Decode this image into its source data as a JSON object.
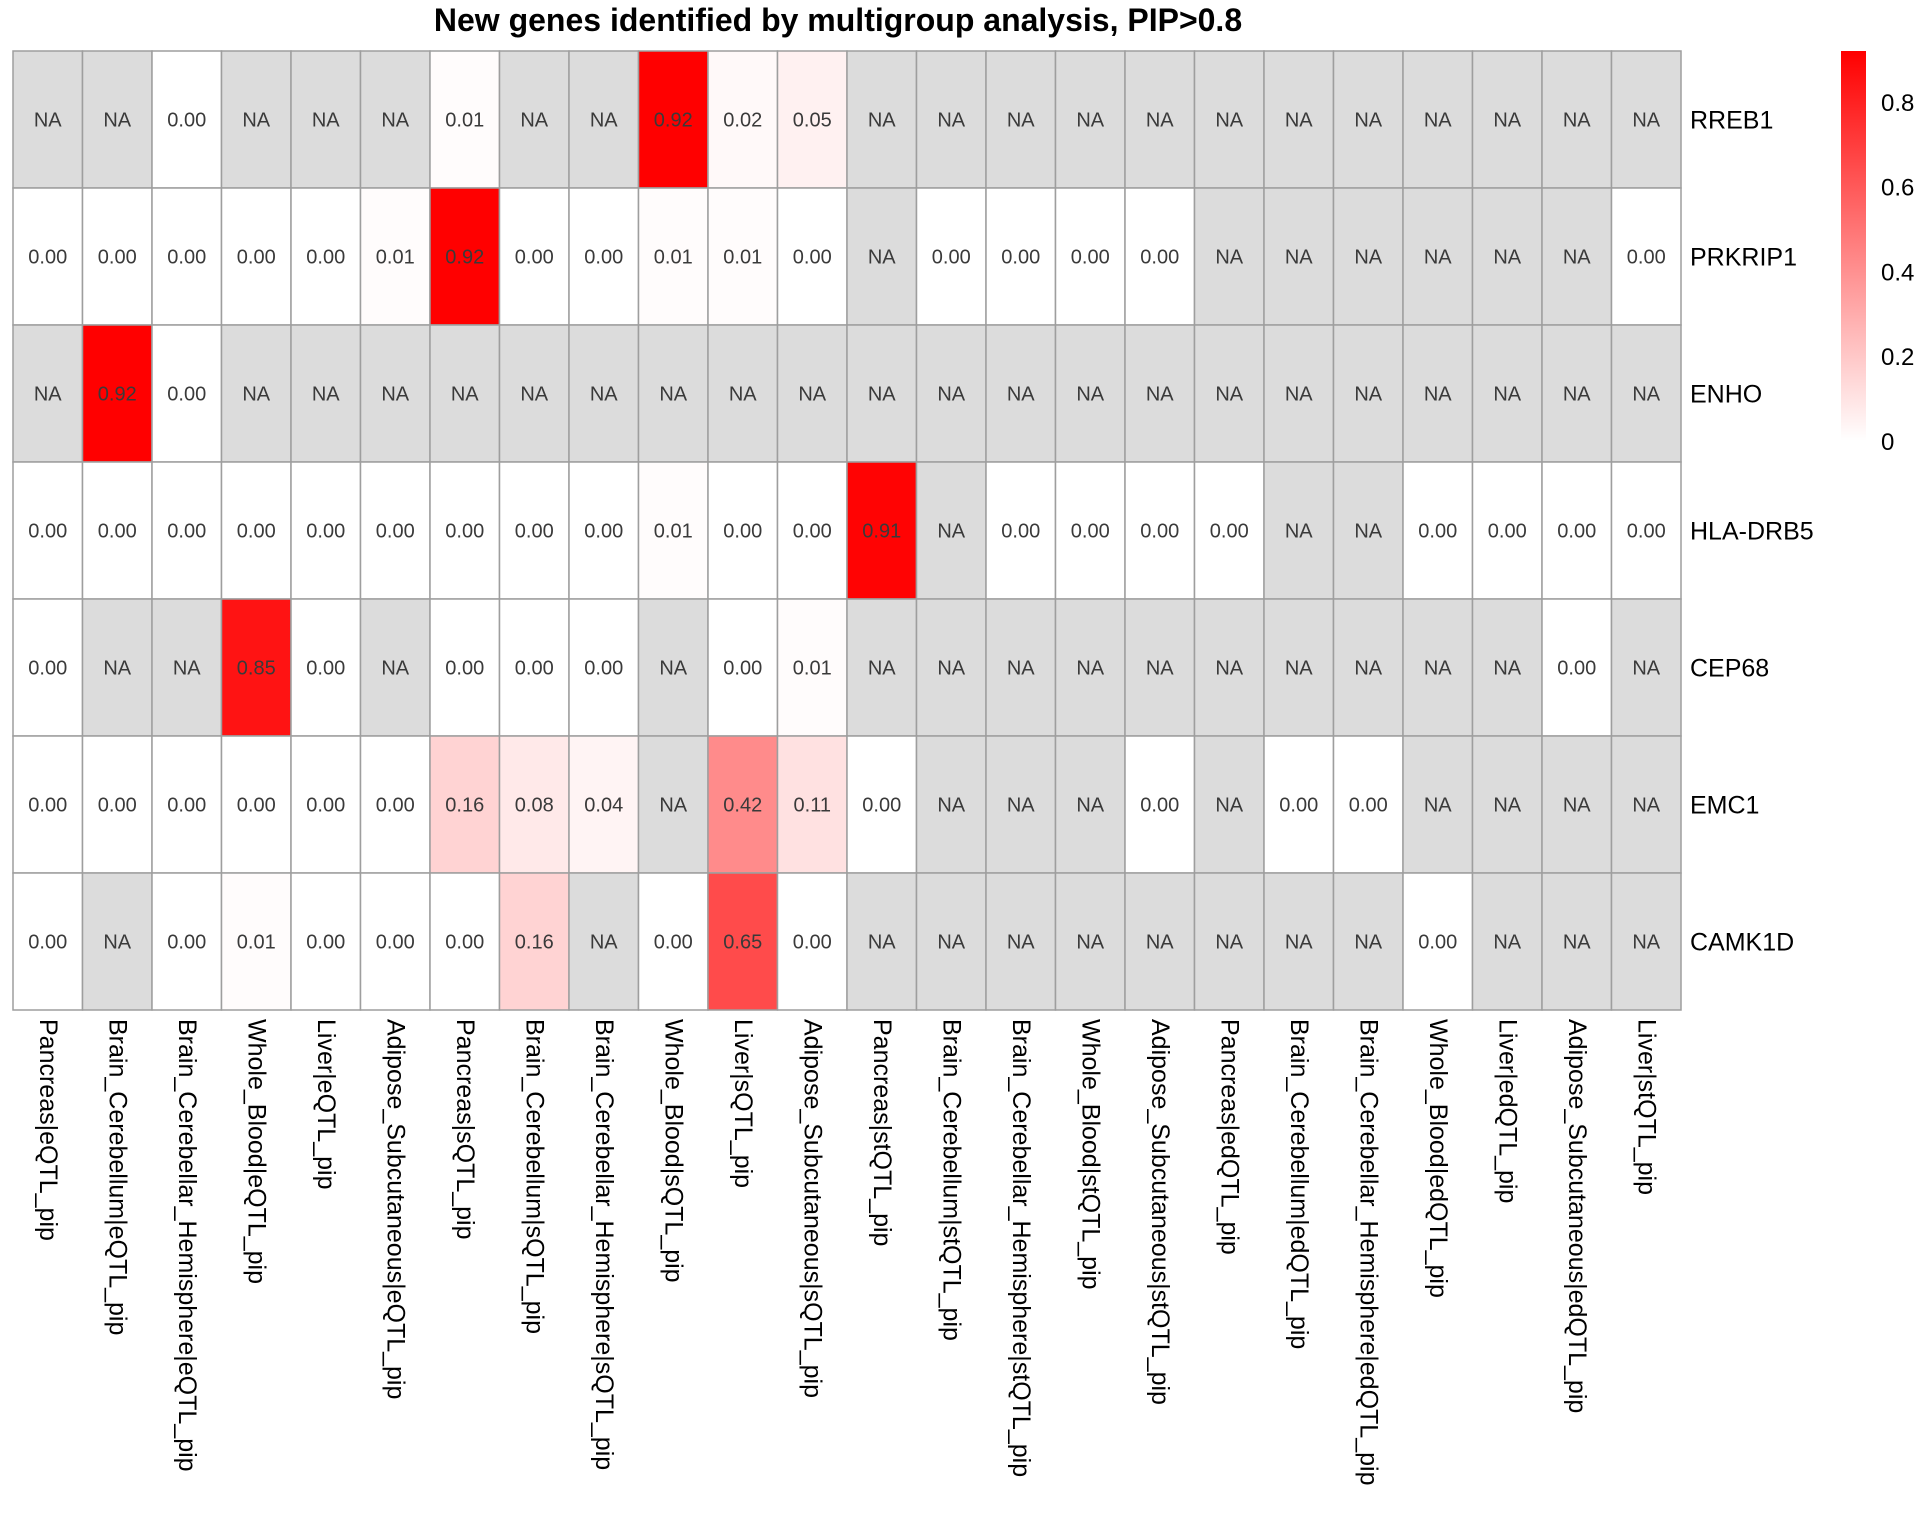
{
  "chart_data": {
    "type": "heatmap",
    "title": "New genes identified by multigroup analysis, PIP>0.8",
    "rows": [
      "RREB1",
      "PRKRIP1",
      "ENHO",
      "HLA-DRB5",
      "CEP68",
      "EMC1",
      "CAMK1D"
    ],
    "columns": [
      "Pancreas|eQTL_pip",
      "Brain_Cerebellum|eQTL_pip",
      "Brain_Cerebellar_Hemisphere|eQTL_pip",
      "Whole_Blood|eQTL_pip",
      "Liver|eQTL_pip",
      "Adipose_Subcutaneous|eQTL_pip",
      "Pancreas|sQTL_pip",
      "Brain_Cerebellum|sQTL_pip",
      "Brain_Cerebellar_Hemisphere|sQTL_pip",
      "Whole_Blood|sQTL_pip",
      "Liver|sQTL_pip",
      "Adipose_Subcutaneous|sQTL_pip",
      "Pancreas|stQTL_pip",
      "Brain_Cerebellum|stQTL_pip",
      "Brain_Cerebellar_Hemisphere|stQTL_pip",
      "Whole_Blood|stQTL_pip",
      "Adipose_Subcutaneous|stQTL_pip",
      "Pancreas|edQTL_pip",
      "Brain_Cerebellum|edQTL_pip",
      "Brain_Cerebellar_Hemisphere|edQTL_pip",
      "Whole_Blood|edQTL_pip",
      "Liver|edQTL_pip",
      "Adipose_Subcutaneous|edQTL_pip",
      "Liver|stQTL_pip"
    ],
    "values": [
      [
        "NA",
        "NA",
        "0.00",
        "NA",
        "NA",
        "NA",
        "0.01",
        "NA",
        "NA",
        "0.92",
        "0.02",
        "0.05",
        "NA",
        "NA",
        "NA",
        "NA",
        "NA",
        "NA",
        "NA",
        "NA",
        "NA",
        "NA",
        "NA",
        "NA"
      ],
      [
        "0.00",
        "0.00",
        "0.00",
        "0.00",
        "0.00",
        "0.01",
        "0.92",
        "0.00",
        "0.00",
        "0.01",
        "0.01",
        "0.00",
        "NA",
        "0.00",
        "0.00",
        "0.00",
        "0.00",
        "NA",
        "NA",
        "NA",
        "NA",
        "NA",
        "NA",
        "0.00"
      ],
      [
        "NA",
        "0.92",
        "0.00",
        "NA",
        "NA",
        "NA",
        "NA",
        "NA",
        "NA",
        "NA",
        "NA",
        "NA",
        "NA",
        "NA",
        "NA",
        "NA",
        "NA",
        "NA",
        "NA",
        "NA",
        "NA",
        "NA",
        "NA",
        "NA"
      ],
      [
        "0.00",
        "0.00",
        "0.00",
        "0.00",
        "0.00",
        "0.00",
        "0.00",
        "0.00",
        "0.00",
        "0.01",
        "0.00",
        "0.00",
        "0.91",
        "NA",
        "0.00",
        "0.00",
        "0.00",
        "0.00",
        "NA",
        "NA",
        "0.00",
        "0.00",
        "0.00",
        "0.00"
      ],
      [
        "0.00",
        "NA",
        "NA",
        "0.85",
        "0.00",
        "NA",
        "0.00",
        "0.00",
        "0.00",
        "NA",
        "0.00",
        "0.01",
        "NA",
        "NA",
        "NA",
        "NA",
        "NA",
        "NA",
        "NA",
        "NA",
        "NA",
        "NA",
        "0.00",
        "NA"
      ],
      [
        "0.00",
        "0.00",
        "0.00",
        "0.00",
        "0.00",
        "0.00",
        "0.16",
        "0.08",
        "0.04",
        "NA",
        "0.42",
        "0.11",
        "0.00",
        "NA",
        "NA",
        "NA",
        "0.00",
        "NA",
        "0.00",
        "0.00",
        "NA",
        "NA",
        "NA",
        "NA"
      ],
      [
        "0.00",
        "NA",
        "0.00",
        "0.01",
        "0.00",
        "0.00",
        "0.00",
        "0.16",
        "NA",
        "0.00",
        "0.65",
        "0.00",
        "NA",
        "NA",
        "NA",
        "NA",
        "NA",
        "NA",
        "NA",
        "NA",
        "0.00",
        "NA",
        "NA",
        "NA"
      ]
    ],
    "na_label": "NA",
    "color_scale": {
      "low": "#ffffff",
      "high": "#ff0000",
      "na": "#dcdcdc",
      "border": "#9e9e9e",
      "max_value": 0.92
    },
    "legend": {
      "placement": "right",
      "ticks": [
        0,
        0.2,
        0.4,
        0.6,
        0.8
      ],
      "tick_labels": [
        "0",
        "0.2",
        "0.4",
        "0.6",
        "0.8"
      ]
    }
  }
}
